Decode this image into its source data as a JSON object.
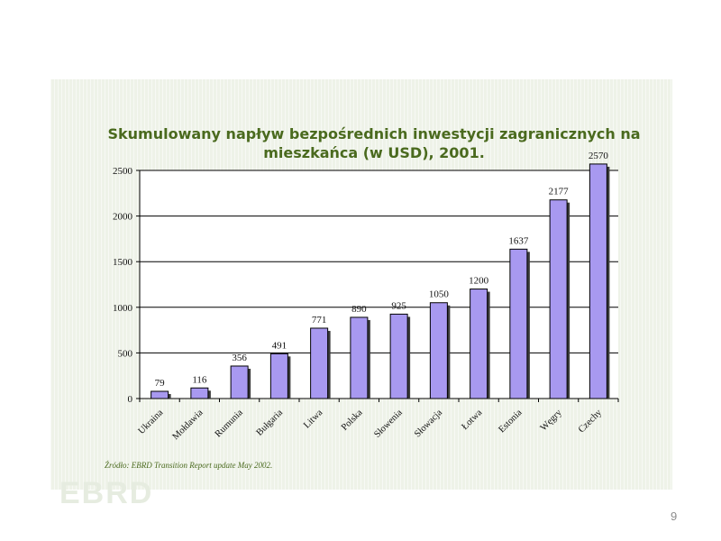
{
  "chart_data": {
    "type": "bar",
    "title": "Skumulowany napływ bezpośrednich inwestycji zagranicznych na mieszkańca (w USD), 2001.",
    "title_line1": "Skumulowany napływ bezpośrednich inwestycji zagranicznych na",
    "title_line2": "mieszkańca (w USD), 2001.",
    "categories": [
      "Ukraina",
      "Mołdawia",
      "Rumunia",
      "Bułgaria",
      "Litwa",
      "Polska",
      "Słowenia",
      "Słowacja",
      "Łotwa",
      "Estonia",
      "Węgry",
      "Czechy"
    ],
    "values": [
      79,
      116,
      356,
      491,
      771,
      890,
      925,
      1050,
      1200,
      1637,
      2177,
      2570
    ],
    "xlabel": "",
    "ylabel": "",
    "ylim": [
      0,
      2500
    ],
    "yticks": [
      0,
      500,
      1000,
      1500,
      2000,
      2500
    ],
    "grid": true,
    "bar_color": "#a899f0"
  },
  "source": "Źródło: EBRD Transition Report update May 2002.",
  "page_number": "9"
}
